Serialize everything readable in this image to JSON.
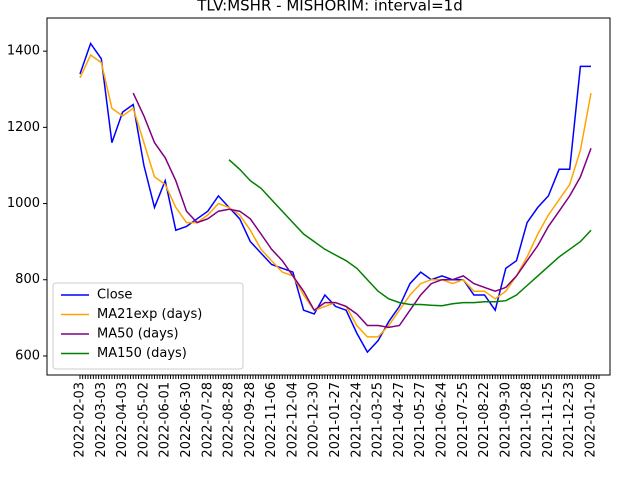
{
  "chart_data": {
    "type": "line",
    "title": "TLV:MSHR - MISHORIM: interval=1d",
    "categories": [
      "2022-02-03",
      null,
      "2022-03-03",
      null,
      "2022-04-03",
      null,
      "2022-05-02",
      null,
      "2022-06-01",
      null,
      "2022-06-30",
      null,
      "2022-07-28",
      null,
      "2022-08-28",
      null,
      "2022-09-28",
      null,
      "2022-11-06",
      null,
      "2022-12-04",
      null,
      "2020-12-30",
      null,
      "2021-01-27",
      null,
      "2021-02-24",
      null,
      "2021-03-25",
      null,
      "2021-04-27",
      null,
      "2021-05-27",
      null,
      "2021-06-24",
      null,
      "2021-07-25",
      null,
      "2021-08-22",
      null,
      "2021-09-30",
      null,
      "2021-10-28",
      null,
      "2021-11-25",
      null,
      "2021-12-23",
      null,
      "2022-01-20"
    ],
    "series": [
      {
        "name": "Close",
        "color": "#0000ff",
        "values": [
          1340,
          1420,
          1380,
          1160,
          1240,
          1260,
          1100,
          990,
          1060,
          930,
          940,
          960,
          980,
          1020,
          990,
          960,
          900,
          870,
          840,
          830,
          820,
          720,
          710,
          760,
          730,
          720,
          660,
          610,
          640,
          690,
          730,
          790,
          820,
          800,
          810,
          800,
          800,
          760,
          760,
          720,
          830,
          850,
          950,
          990,
          1020,
          1090,
          1090,
          1360,
          1360
        ]
      },
      {
        "name": "MA21exp (days)",
        "color": "#ffa500",
        "values": [
          1330,
          1390,
          1370,
          1250,
          1230,
          1250,
          1160,
          1070,
          1050,
          990,
          950,
          950,
          970,
          1000,
          990,
          970,
          930,
          880,
          850,
          820,
          810,
          760,
          720,
          730,
          740,
          730,
          680,
          650,
          650,
          680,
          720,
          760,
          790,
          800,
          800,
          790,
          800,
          770,
          770,
          750,
          770,
          810,
          860,
          920,
          970,
          1010,
          1050,
          1140,
          1290
        ]
      },
      {
        "name": "MA50 (days)",
        "color": "#800080",
        "values": [
          null,
          null,
          null,
          null,
          null,
          1290,
          1230,
          1160,
          1120,
          1060,
          980,
          950,
          960,
          980,
          985,
          980,
          960,
          920,
          880,
          850,
          810,
          770,
          720,
          740,
          740,
          730,
          710,
          680,
          680,
          675,
          680,
          720,
          760,
          790,
          800,
          800,
          810,
          790,
          780,
          770,
          780,
          810,
          850,
          890,
          940,
          980,
          1020,
          1070,
          1145
        ]
      },
      {
        "name": "MA150 (days)",
        "color": "#008000",
        "values": [
          null,
          null,
          null,
          null,
          null,
          null,
          null,
          null,
          null,
          null,
          null,
          null,
          null,
          null,
          1115,
          1090,
          1060,
          1040,
          1010,
          980,
          950,
          920,
          900,
          880,
          865,
          850,
          830,
          800,
          770,
          750,
          740,
          735,
          735,
          733,
          732,
          737,
          740,
          740,
          742,
          742,
          745,
          760,
          785,
          810,
          835,
          860,
          880,
          900,
          930
        ]
      }
    ],
    "ylim": [
      550,
      1487
    ],
    "yticks": [
      600,
      800,
      1000,
      1200,
      1400
    ],
    "legend": "lower left"
  }
}
